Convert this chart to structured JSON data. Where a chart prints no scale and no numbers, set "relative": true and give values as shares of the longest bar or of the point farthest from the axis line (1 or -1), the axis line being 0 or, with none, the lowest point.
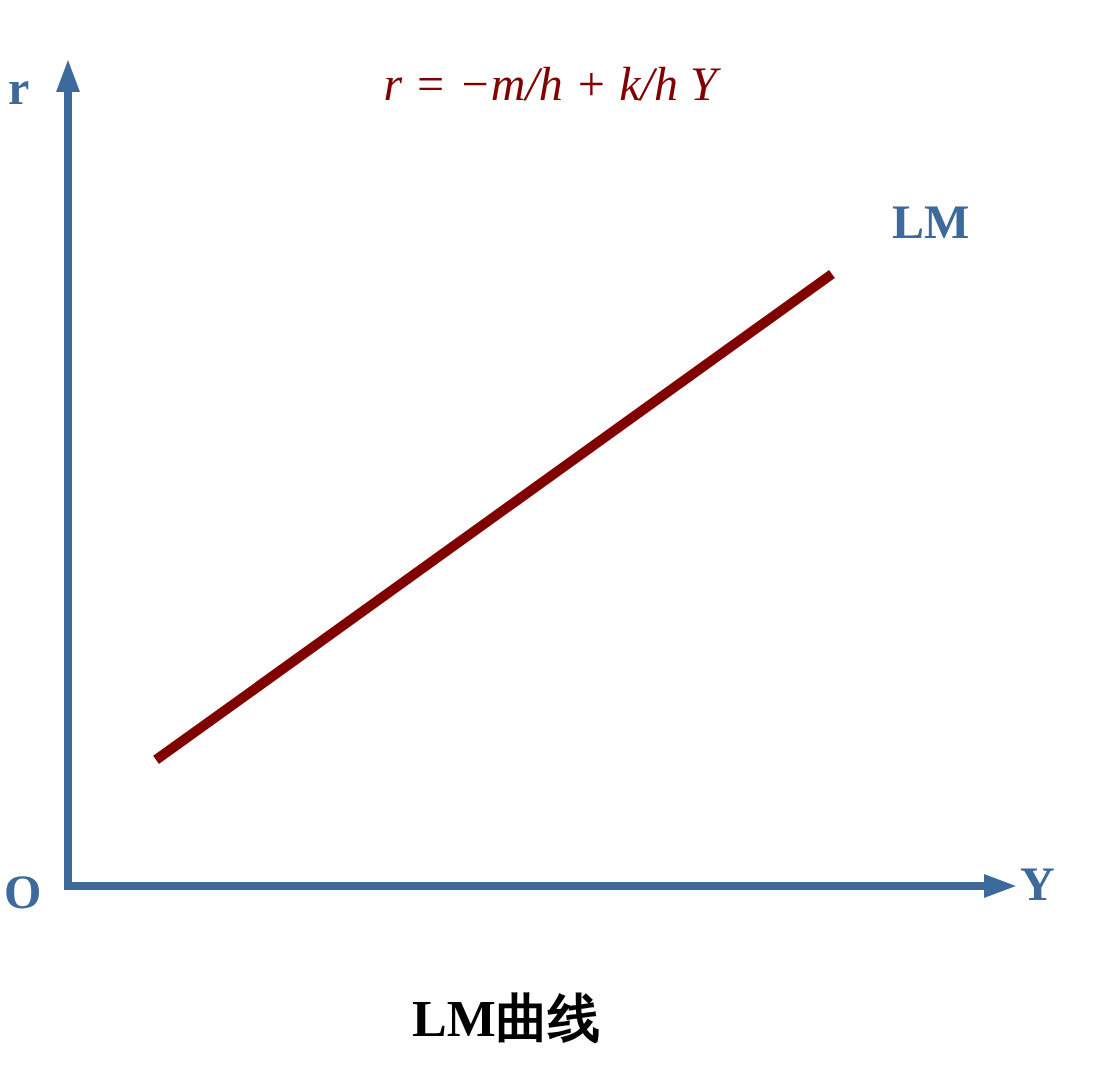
{
  "chart_data": {
    "type": "line",
    "title": "LM曲线",
    "xlabel": "Y",
    "ylabel": "r",
    "relative": true,
    "categories": [
      null,
      null
    ],
    "series": [
      {
        "name": "LM",
        "color": "#800000",
        "values": [
          0.206,
          1
        ]
      }
    ],
    "annotations": [
      "r = −m/h + k/h Y",
      "O"
    ]
  }
}
